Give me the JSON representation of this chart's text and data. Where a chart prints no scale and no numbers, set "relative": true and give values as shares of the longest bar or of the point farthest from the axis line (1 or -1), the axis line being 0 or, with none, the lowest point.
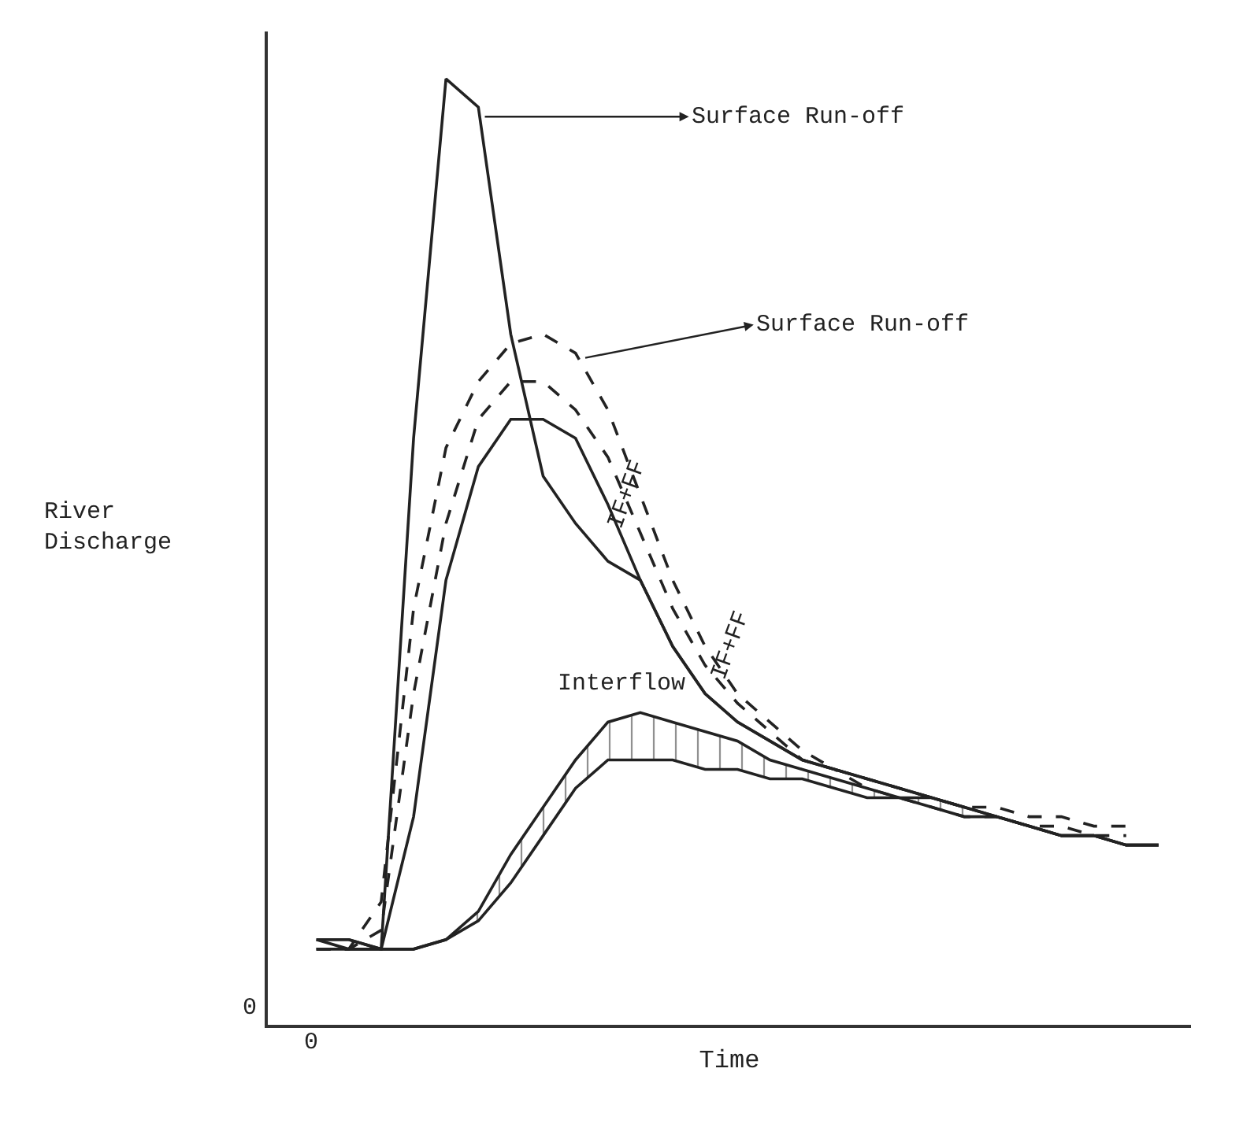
{
  "chart_data": {
    "type": "line",
    "relative": true,
    "xlabel": "Time",
    "ylabel": "River Discharge",
    "tick_labels": false,
    "marker": "none",
    "categories": [
      null,
      null,
      null,
      null,
      null,
      null,
      null,
      null,
      null,
      null,
      null,
      null,
      null,
      null,
      null,
      null,
      null,
      null,
      null,
      null,
      null,
      null,
      null,
      null,
      null,
      null,
      null
    ],
    "series": [
      {
        "color": "#222222",
        "line_style": "solid",
        "values": [
          0.09,
          0.08,
          0.08,
          0.62,
          1.0,
          0.97,
          0.73,
          0.58,
          0.53,
          0.49,
          0.47,
          0.4,
          0.35,
          0.32,
          0.3,
          0.28,
          0.27,
          0.26,
          0.25,
          0.24,
          0.23,
          0.22,
          0.21,
          0.2,
          0.2,
          0.19,
          0.19
        ]
      },
      {
        "color": "#222222",
        "line_style": "dashed",
        "values": [
          0.08,
          0.08,
          0.13,
          0.44,
          0.61,
          0.68,
          0.72,
          0.73,
          0.71,
          0.65,
          0.56,
          0.47,
          0.4,
          0.35,
          0.32,
          0.29,
          0.27,
          0.26,
          0.25,
          0.24,
          0.23,
          0.23,
          0.22,
          0.22,
          0.21,
          0.21,
          null
        ]
      },
      {
        "color": "#222222",
        "line_style": "dashed",
        "values": [
          0.08,
          0.08,
          0.1,
          0.35,
          0.53,
          0.64,
          0.68,
          0.68,
          0.65,
          0.6,
          0.52,
          0.44,
          0.38,
          0.34,
          0.31,
          0.28,
          0.27,
          0.25,
          0.24,
          0.23,
          0.22,
          0.22,
          0.21,
          0.21,
          0.2,
          0.2,
          null
        ]
      },
      {
        "color": "#222222",
        "line_style": "solid",
        "values": [
          0.08,
          0.08,
          0.08,
          0.22,
          0.47,
          0.59,
          0.64,
          0.64,
          0.62,
          0.55,
          0.47,
          0.4,
          0.35,
          0.32,
          0.3,
          0.28,
          0.27,
          0.26,
          0.25,
          0.24,
          0.23,
          0.22,
          0.21,
          0.2,
          0.2,
          0.19,
          0.19
        ]
      },
      {
        "color": "#222222",
        "line_style": "solid",
        "values": [
          0.09,
          0.09,
          0.08,
          0.08,
          0.09,
          0.11,
          0.15,
          0.2,
          0.25,
          0.28,
          0.28,
          0.28,
          0.27,
          0.27,
          0.26,
          0.26,
          0.25,
          0.24,
          0.24,
          0.23,
          0.22,
          0.22,
          0.21,
          0.2,
          0.2,
          0.19,
          0.19
        ]
      },
      {
        "color": "#222222",
        "line_style": "solid",
        "values": [
          0.09,
          0.09,
          0.08,
          0.08,
          0.09,
          0.12,
          0.18,
          0.23,
          0.28,
          0.32,
          0.33,
          0.32,
          0.31,
          0.3,
          0.28,
          0.27,
          0.26,
          0.25,
          0.24,
          0.24,
          0.23,
          null,
          null,
          null,
          null,
          null,
          null
        ],
        "lower": [
          0.09,
          0.09,
          0.08,
          0.08,
          0.09,
          0.11,
          0.15,
          0.2,
          0.25,
          0.28,
          0.28,
          0.28,
          0.27,
          0.27,
          0.26,
          0.26,
          0.25,
          0.24,
          0.24,
          0.23,
          0.22,
          null,
          null,
          null,
          null,
          null,
          null
        ],
        "upper": [
          0.09,
          0.09,
          0.08,
          0.08,
          0.09,
          0.12,
          0.18,
          0.23,
          0.28,
          0.32,
          0.33,
          0.32,
          0.31,
          0.3,
          0.28,
          0.27,
          0.26,
          0.25,
          0.24,
          0.24,
          0.23,
          null,
          null,
          null,
          null,
          null,
          null
        ]
      }
    ],
    "annotations": [
      "Surface Run-off",
      "Surface Run-off",
      "IF+FF",
      "IF+FF",
      "Interflow",
      "0",
      "0"
    ]
  }
}
